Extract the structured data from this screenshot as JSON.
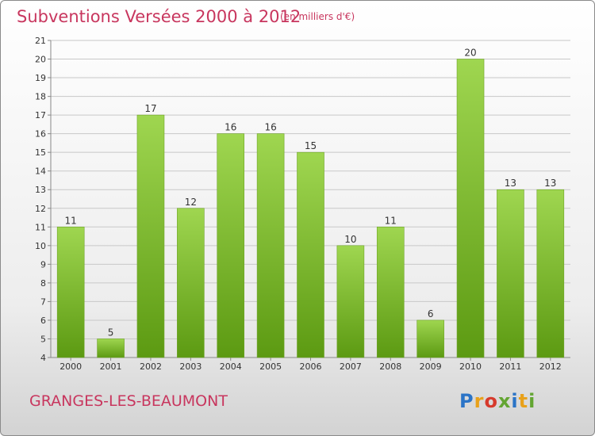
{
  "header": {
    "title": "Subventions Versées 2000 à 2012",
    "subtitle": "(en milliers d'€)"
  },
  "footer": {
    "commune": "GRANGES-LES-BEAUMONT",
    "logo": {
      "letters": [
        "P",
        "r",
        "o",
        "x",
        "i",
        "t",
        "i"
      ],
      "text": "Proxiti",
      "colors": [
        "#2b74c7",
        "#e8a11a",
        "#d63a2c",
        "#63a532",
        "#2b74c7",
        "#e8a11a",
        "#63a532"
      ]
    }
  },
  "colors": {
    "bar_light": "#9fd650",
    "bar_dark": "#5c9a12",
    "grid": "#c8c8c8",
    "accent": "#c8365e"
  },
  "chart_data": {
    "type": "bar",
    "title": "Subventions Versées 2000 à 2012",
    "subtitle": "(en milliers d'€)",
    "xlabel": "",
    "ylabel": "",
    "categories": [
      "2000",
      "2001",
      "2002",
      "2003",
      "2004",
      "2005",
      "2006",
      "2007",
      "2008",
      "2009",
      "2010",
      "2011",
      "2012"
    ],
    "values": [
      11,
      5,
      17,
      12,
      16,
      16,
      15,
      10,
      11,
      6,
      20,
      13,
      13
    ],
    "data_labels": [
      "11",
      "5",
      "17",
      "12",
      "16",
      "16",
      "15",
      "10",
      "11",
      "6",
      "20",
      "13",
      "13"
    ],
    "ylim": [
      4,
      21
    ],
    "yticks": [
      "4",
      "5",
      "6",
      "7",
      "8",
      "9",
      "10",
      "11",
      "12",
      "13",
      "14",
      "15",
      "16",
      "17",
      "18",
      "19",
      "20",
      "21"
    ],
    "grid": true,
    "legend": "none"
  }
}
